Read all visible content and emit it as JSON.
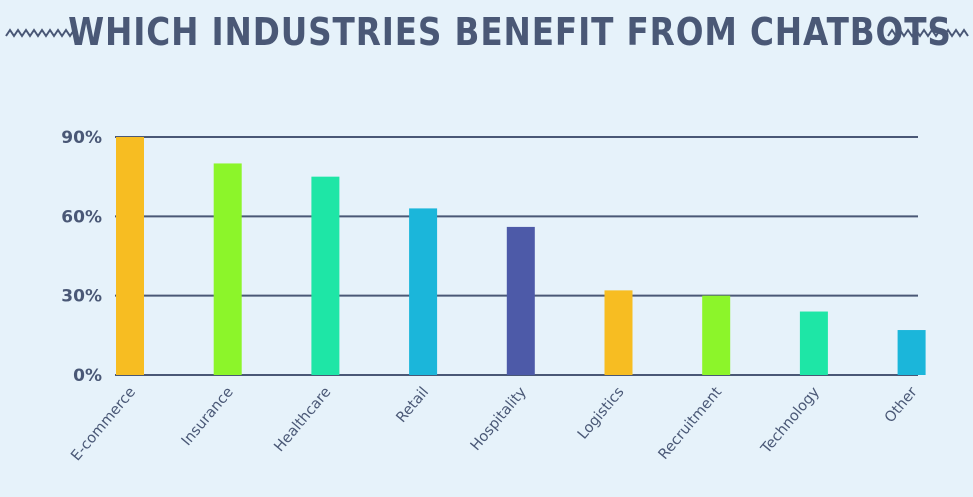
{
  "chart_data": {
    "type": "bar",
    "title": "WHICH INDUSTRIES BENEFIT FROM CHATBOTS",
    "xlabel": "",
    "ylabel": "",
    "categories": [
      "E-commerce",
      "Insurance",
      "Healthcare",
      "Retail",
      "Hospitality",
      "Logistics",
      "Recruitment",
      "Technology",
      "Other"
    ],
    "values": [
      90,
      80,
      75,
      63,
      56,
      32,
      30,
      24,
      17
    ],
    "ylim": [
      0,
      90
    ],
    "yticks": [
      0,
      30,
      60,
      90
    ],
    "ytick_labels": [
      "0%",
      "30%",
      "60%",
      "90%"
    ],
    "colors": [
      "#f7bd22",
      "#8cf52a",
      "#1ee6a6",
      "#1bb6da",
      "#4d5aa8",
      "#f7bd22",
      "#8cf52a",
      "#1ee6a6",
      "#1bb6da"
    ],
    "grid": true,
    "legend": "none"
  },
  "colors": {
    "background": "#e6f2fa",
    "text": "#4a5876",
    "gridline": "#4a5876"
  }
}
